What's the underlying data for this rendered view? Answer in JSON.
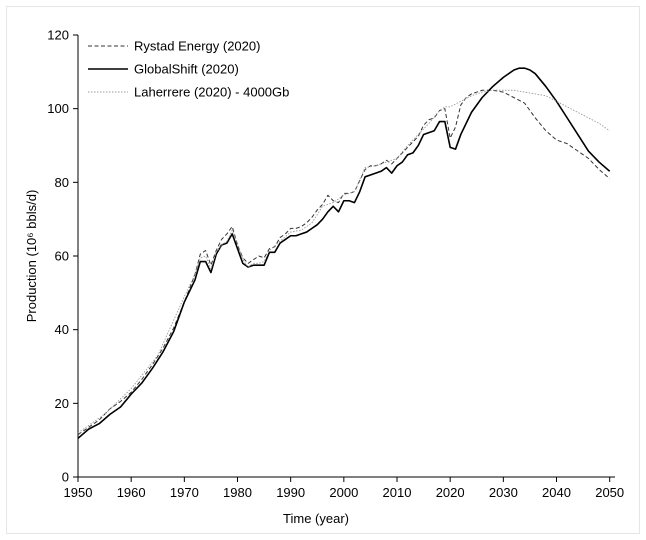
{
  "chart_data": {
    "type": "line",
    "xlabel": "Time (year)",
    "ylabel": "Production (10⁶ bbls/d)",
    "xlim": [
      1950,
      2051
    ],
    "ylim": [
      0,
      120
    ],
    "x_ticks": [
      "1950",
      "1960",
      "1970",
      "1980",
      "1990",
      "2000",
      "2010",
      "2020",
      "2030",
      "2040",
      "2050"
    ],
    "y_ticks": [
      "0",
      "20",
      "40",
      "60",
      "80",
      "100",
      "120"
    ],
    "grid": false,
    "legend_position": "top-left",
    "series": [
      {
        "name": "Rystad Energy (2020)",
        "style": "dashed",
        "color": "#333333",
        "x": [
          1950,
          1952,
          1954,
          1956,
          1958,
          1960,
          1962,
          1964,
          1966,
          1968,
          1970,
          1972,
          1973,
          1974,
          1975,
          1976,
          1977,
          1978,
          1979,
          1980,
          1981,
          1982,
          1983,
          1984,
          1985,
          1986,
          1987,
          1988,
          1989,
          1990,
          1991,
          1992,
          1993,
          1994,
          1995,
          1996,
          1997,
          1998,
          1999,
          2000,
          2001,
          2002,
          2003,
          2004,
          2005,
          2006,
          2007,
          2008,
          2009,
          2010,
          2011,
          2012,
          2013,
          2014,
          2015,
          2016,
          2017,
          2018,
          2019,
          2020,
          2021,
          2022,
          2023,
          2024,
          2025,
          2026,
          2027,
          2028,
          2030,
          2032,
          2034,
          2036,
          2038,
          2040,
          2042,
          2044,
          2046,
          2048,
          2050
        ],
        "y": [
          11.5,
          13.5,
          15.5,
          18.5,
          20.5,
          23,
          26.5,
          30.5,
          35,
          40.5,
          47.5,
          55,
          60.5,
          61.5,
          57.5,
          61.5,
          64.5,
          66,
          68,
          63,
          59.5,
          58,
          59,
          60,
          59.5,
          62,
          62.5,
          65,
          66,
          67.5,
          67.5,
          68,
          69,
          70.5,
          72.5,
          74,
          76.5,
          75,
          74.5,
          77,
          77,
          77.5,
          80.5,
          83.5,
          84.5,
          84.5,
          85,
          86,
          85,
          86.5,
          88,
          89.5,
          91,
          92.5,
          95.5,
          97,
          97.5,
          99.5,
          100,
          92,
          95,
          101,
          103,
          104,
          104.5,
          105,
          105,
          105,
          104.5,
          103,
          101.5,
          97.5,
          94,
          91.5,
          90.5,
          88.5,
          86.5,
          83.5,
          81
        ]
      },
      {
        "name": "GlobalShift (2020)",
        "style": "solid",
        "color": "#000000",
        "x": [
          1950,
          1952,
          1954,
          1956,
          1958,
          1960,
          1962,
          1964,
          1966,
          1968,
          1970,
          1972,
          1973,
          1974,
          1975,
          1976,
          1977,
          1978,
          1979,
          1980,
          1981,
          1982,
          1983,
          1984,
          1985,
          1986,
          1987,
          1988,
          1989,
          1990,
          1991,
          1992,
          1993,
          1994,
          1995,
          1996,
          1997,
          1998,
          1999,
          2000,
          2001,
          2002,
          2003,
          2004,
          2005,
          2006,
          2007,
          2008,
          2009,
          2010,
          2011,
          2012,
          2013,
          2014,
          2015,
          2016,
          2017,
          2018,
          2019,
          2020,
          2021,
          2022,
          2024,
          2026,
          2028,
          2030,
          2032,
          2033,
          2034,
          2035,
          2036,
          2038,
          2040,
          2042,
          2044,
          2046,
          2048,
          2050
        ],
        "y": [
          10.5,
          13,
          14.5,
          17,
          19,
          22.5,
          25.5,
          29.5,
          34,
          39.5,
          47.5,
          53.5,
          58.5,
          58.5,
          55.5,
          60.5,
          63,
          63.5,
          66,
          62,
          58,
          57,
          57.5,
          57.5,
          57.5,
          61,
          61,
          63.5,
          64.5,
          65.5,
          65.5,
          66,
          66.5,
          67.5,
          68.5,
          70,
          72,
          73.5,
          72,
          75,
          75,
          74.5,
          77.5,
          81.5,
          82,
          82.5,
          83,
          84,
          82.5,
          84.5,
          85.5,
          87.5,
          88,
          90,
          93,
          93.5,
          94,
          96.5,
          96.5,
          89.5,
          89,
          93,
          99,
          103,
          106,
          108.5,
          110.5,
          111,
          111,
          110.5,
          109.5,
          106,
          102,
          97.5,
          93,
          88.5,
          85.5,
          83
        ]
      },
      {
        "name": "Laherrere (2020) - 4000Gb",
        "style": "dotted",
        "color": "#9a9a9a",
        "x": [
          1950,
          1955,
          1960,
          1965,
          1970,
          1972,
          1973,
          1974,
          1975,
          1976,
          1977,
          1978,
          1979,
          1980,
          1981,
          1982,
          1983,
          1984,
          1985,
          1986,
          1988,
          1990,
          1992,
          1994,
          1996,
          1998,
          2000,
          2002,
          2004,
          2006,
          2008,
          2010,
          2012,
          2014,
          2016,
          2018,
          2019,
          2020,
          2022,
          2024,
          2026,
          2028,
          2030,
          2032,
          2034,
          2036,
          2038,
          2040,
          2042,
          2044,
          2046,
          2048,
          2050
        ],
        "y": [
          12,
          17,
          24,
          33,
          49,
          55,
          59.5,
          60,
          56.5,
          61,
          63,
          64,
          67,
          63.5,
          59,
          57,
          58,
          58,
          58.5,
          61.5,
          64,
          66.5,
          67,
          69,
          73.5,
          74.5,
          76.5,
          77.5,
          84,
          84.5,
          85.5,
          86.5,
          90,
          93,
          96,
          99.5,
          100.5,
          100.5,
          102,
          103.5,
          104.5,
          105,
          105,
          105,
          104.5,
          104,
          103.5,
          102,
          100.5,
          99,
          97.5,
          96,
          94
        ]
      }
    ]
  }
}
